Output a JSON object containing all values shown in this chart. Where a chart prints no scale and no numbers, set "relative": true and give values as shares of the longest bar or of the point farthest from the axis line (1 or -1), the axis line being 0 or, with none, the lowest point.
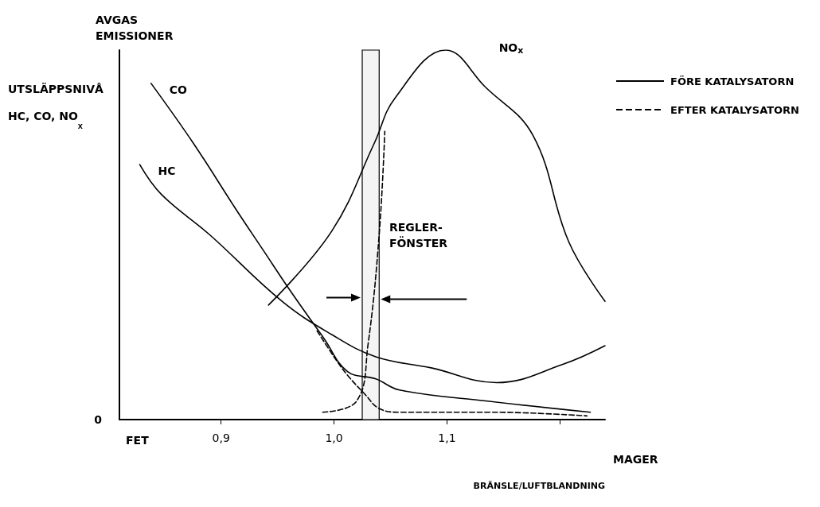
{
  "chart_data": {
    "type": "line",
    "relative": true,
    "title": "AVGAS\nEMISSIONER",
    "ylabel": "UTSLÄPPSNIVÅ\nHC, CO, NO$_{x}$",
    "xlabel": "BRÄNSLE/LUFTBLANDNING",
    "xlim": [
      0.81,
      1.24
    ],
    "xticks": [
      {
        "value": 0.9,
        "label": "0,9"
      },
      {
        "value": 1.0,
        "label": "1,0"
      },
      {
        "value": 1.1,
        "label": "1,1"
      },
      {
        "value": 1.2,
        "label": null
      }
    ],
    "series": [
      {
        "name": "CO",
        "color": "#000000",
        "line_style": "solid",
        "x": [
          0.838,
          0.875,
          0.913,
          0.937,
          0.961,
          0.991,
          1.012,
          1.037,
          1.058,
          1.136,
          1.227
        ],
        "values": [
          0.91,
          0.75,
          0.57,
          0.46,
          0.35,
          0.22,
          0.13,
          0.11,
          0.08,
          0.05,
          0.02
        ]
      },
      {
        "name": "HC",
        "color": "#000000",
        "line_style": "solid",
        "x": [
          0.828,
          0.847,
          0.89,
          0.954,
          0.998,
          1.037,
          1.086,
          1.144,
          1.203,
          1.24
        ],
        "values": [
          0.69,
          0.61,
          0.5,
          0.32,
          0.23,
          0.17,
          0.14,
          0.1,
          0.15,
          0.2
        ]
      },
      {
        "name": "NO$_{x}$",
        "color": "#000000",
        "line_style": "solid",
        "x": [
          0.942,
          0.998,
          1.036,
          1.054,
          1.099,
          1.134,
          1.176,
          1.208,
          1.24
        ],
        "values": [
          0.31,
          0.51,
          0.75,
          0.87,
          1.0,
          0.9,
          0.77,
          0.48,
          0.32
        ]
      },
      {
        "color": "#000000",
        "line_style": "dashed",
        "x": [
          0.985,
          1.0,
          1.012,
          1.027,
          1.04,
          1.058,
          1.14,
          1.224,
          null,
          0.99,
          1.02,
          1.03,
          1.04,
          1.045
        ],
        "values": [
          0.24,
          0.17,
          0.12,
          0.07,
          0.03,
          0.02,
          0.02,
          0.01,
          null,
          0.02,
          0.05,
          0.2,
          0.5,
          0.78
        ]
      }
    ],
    "bands": [
      {
        "axis": "x",
        "from": 1.025,
        "to": 1.04,
        "label": "REGLER-\nFÖNSTER",
        "color": "#f4f4f4"
      }
    ],
    "annotations": [
      "FÖRE KATALYSATORN",
      "EFTER KATALYSATORN",
      "FET",
      "MAGER",
      "0"
    ],
    "grid": false,
    "marker": "none"
  }
}
